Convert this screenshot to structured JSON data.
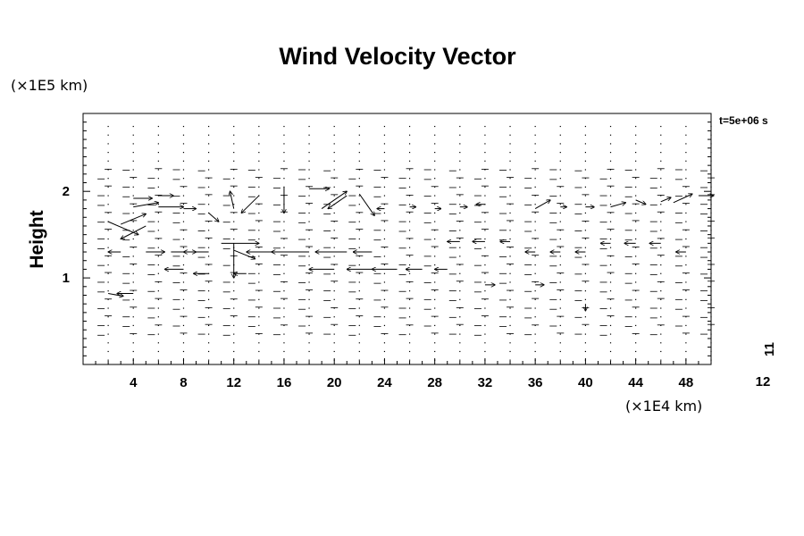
{
  "chart_data": {
    "type": "quiver",
    "title": "Wind Velocity Vector",
    "ylabel": "Height",
    "y_unit": "(×1E5 km)",
    "x_unit": "(×1E4 km)",
    "time_label": "t=5e+06 s",
    "xlim": [
      0,
      50
    ],
    "ylim": [
      0,
      2.9
    ],
    "x_ticks": [
      "4",
      "8",
      "12",
      "16",
      "20",
      "24",
      "28",
      "32",
      "36",
      "40",
      "44",
      "48"
    ],
    "x_tick_values": [
      4,
      8,
      12,
      16,
      20,
      24,
      28,
      32,
      36,
      40,
      44,
      48
    ],
    "y_ticks": [
      "1",
      "2"
    ],
    "y_tick_values": [
      1,
      2
    ],
    "legend_labels": {
      "vertical": "11",
      "horizontal": "12"
    },
    "grid_x": [
      2,
      4,
      6,
      8,
      10,
      12,
      14,
      16,
      18,
      20,
      22,
      24,
      26,
      28,
      30,
      32,
      34,
      36,
      38,
      40,
      42,
      44,
      46,
      48,
      50
    ],
    "grid_y": [
      0.05,
      0.15,
      0.25,
      0.35,
      0.45,
      0.55,
      0.65,
      0.75,
      0.85,
      0.95,
      1.05,
      1.15,
      1.25,
      1.35,
      1.45,
      1.55,
      1.65,
      1.75,
      1.85,
      1.95,
      2.05,
      2.15,
      2.25,
      2.35,
      2.45,
      2.55,
      2.65,
      2.75
    ],
    "vectors": [
      {
        "x": 2,
        "y": 1.65,
        "u": 2.4,
        "v": -0.15
      },
      {
        "x": 3,
        "y": 1.62,
        "u": 2.0,
        "v": 0.12
      },
      {
        "x": 5,
        "y": 1.6,
        "u": -2.0,
        "v": -0.15
      },
      {
        "x": 4,
        "y": 1.82,
        "u": 2.0,
        "v": 0.05
      },
      {
        "x": 6,
        "y": 1.82,
        "u": 2.0,
        "v": 0.0
      },
      {
        "x": 8,
        "y": 1.8,
        "u": 1.0,
        "v": 0.0
      },
      {
        "x": 4,
        "y": 1.92,
        "u": 1.5,
        "v": 0.0
      },
      {
        "x": 6,
        "y": 1.95,
        "u": 1.2,
        "v": 0.0
      },
      {
        "x": 10,
        "y": 1.75,
        "u": 0.8,
        "v": -0.1
      },
      {
        "x": 12,
        "y": 1.8,
        "u": -0.3,
        "v": 0.2
      },
      {
        "x": 14,
        "y": 1.95,
        "u": -1.4,
        "v": -0.2
      },
      {
        "x": 16,
        "y": 2.05,
        "u": 0.0,
        "v": -0.3
      },
      {
        "x": 18,
        "y": 2.03,
        "u": 1.6,
        "v": 0.0
      },
      {
        "x": 19,
        "y": 1.8,
        "u": 2.0,
        "v": 0.2
      },
      {
        "x": 21,
        "y": 1.95,
        "u": -1.5,
        "v": -0.15
      },
      {
        "x": 22,
        "y": 1.97,
        "u": 1.2,
        "v": -0.25
      },
      {
        "x": 24,
        "y": 1.8,
        "u": -0.6,
        "v": 0.0
      },
      {
        "x": 26,
        "y": 1.82,
        "u": 0.5,
        "v": 0.0
      },
      {
        "x": 28,
        "y": 1.8,
        "u": 0.5,
        "v": 0.0
      },
      {
        "x": 30,
        "y": 1.82,
        "u": 0.6,
        "v": 0.0
      },
      {
        "x": 32,
        "y": 1.85,
        "u": -0.7,
        "v": 0.0
      },
      {
        "x": 36,
        "y": 1.8,
        "u": 1.2,
        "v": 0.1
      },
      {
        "x": 38,
        "y": 1.82,
        "u": 0.5,
        "v": 0.0
      },
      {
        "x": 40,
        "y": 1.82,
        "u": 0.7,
        "v": 0.0
      },
      {
        "x": 42,
        "y": 1.82,
        "u": 1.2,
        "v": 0.05
      },
      {
        "x": 44,
        "y": 1.9,
        "u": 0.8,
        "v": -0.05
      },
      {
        "x": 46,
        "y": 1.88,
        "u": 0.8,
        "v": 0.05
      },
      {
        "x": 47,
        "y": 1.87,
        "u": 1.5,
        "v": 0.1
      },
      {
        "x": 49,
        "y": 1.95,
        "u": 1.2,
        "v": 0.0
      },
      {
        "x": 3,
        "y": 1.3,
        "u": -1.0,
        "v": 0.0
      },
      {
        "x": 5,
        "y": 1.3,
        "u": 1.5,
        "v": 0.0
      },
      {
        "x": 7,
        "y": 1.3,
        "u": 2.0,
        "v": 0.0
      },
      {
        "x": 10,
        "y": 1.3,
        "u": -2.0,
        "v": 0.0
      },
      {
        "x": 11,
        "y": 1.4,
        "u": 3.0,
        "v": 0.0
      },
      {
        "x": 12,
        "y": 1.4,
        "u": 0.0,
        "v": -0.4
      },
      {
        "x": 12,
        "y": 1.32,
        "u": 1.7,
        "v": -0.1
      },
      {
        "x": 15,
        "y": 1.3,
        "u": -2.0,
        "v": 0.0
      },
      {
        "x": 18,
        "y": 1.3,
        "u": -3.0,
        "v": 0.0
      },
      {
        "x": 21,
        "y": 1.3,
        "u": -2.5,
        "v": 0.0
      },
      {
        "x": 23,
        "y": 1.3,
        "u": -1.5,
        "v": 0.0
      },
      {
        "x": 8,
        "y": 1.1,
        "u": -1.5,
        "v": 0.0
      },
      {
        "x": 10,
        "y": 1.05,
        "u": -1.2,
        "v": 0.0
      },
      {
        "x": 13,
        "y": 1.05,
        "u": -1.0,
        "v": 0.0
      },
      {
        "x": 20,
        "y": 1.1,
        "u": -2.0,
        "v": 0.0
      },
      {
        "x": 23,
        "y": 1.1,
        "u": -2.0,
        "v": 0.0
      },
      {
        "x": 25,
        "y": 1.1,
        "u": -2.0,
        "v": 0.0
      },
      {
        "x": 27,
        "y": 1.1,
        "u": -1.3,
        "v": 0.0
      },
      {
        "x": 29,
        "y": 1.1,
        "u": -1.0,
        "v": 0.0
      },
      {
        "x": 30,
        "y": 1.42,
        "u": -1.0,
        "v": 0.0
      },
      {
        "x": 32,
        "y": 1.42,
        "u": -1.0,
        "v": 0.0
      },
      {
        "x": 34,
        "y": 1.42,
        "u": -0.8,
        "v": 0.0
      },
      {
        "x": 36,
        "y": 1.3,
        "u": -0.8,
        "v": 0.0
      },
      {
        "x": 38,
        "y": 1.3,
        "u": -0.8,
        "v": 0.0
      },
      {
        "x": 40,
        "y": 1.3,
        "u": -0.8,
        "v": 0.0
      },
      {
        "x": 42,
        "y": 1.4,
        "u": -0.8,
        "v": 0.0
      },
      {
        "x": 44,
        "y": 1.4,
        "u": -0.9,
        "v": 0.0
      },
      {
        "x": 46,
        "y": 1.4,
        "u": -0.9,
        "v": 0.0
      },
      {
        "x": 48,
        "y": 1.3,
        "u": -0.8,
        "v": 0.0
      },
      {
        "x": 2,
        "y": 0.82,
        "u": 1.2,
        "v": -0.03
      },
      {
        "x": 4,
        "y": 0.82,
        "u": -1.3,
        "v": 0.0
      },
      {
        "x": 32,
        "y": 0.92,
        "u": 0.8,
        "v": 0.0
      },
      {
        "x": 36,
        "y": 0.92,
        "u": 0.7,
        "v": 0.0
      },
      {
        "x": 40,
        "y": 0.7,
        "u": 0.0,
        "v": -0.08
      }
    ]
  }
}
